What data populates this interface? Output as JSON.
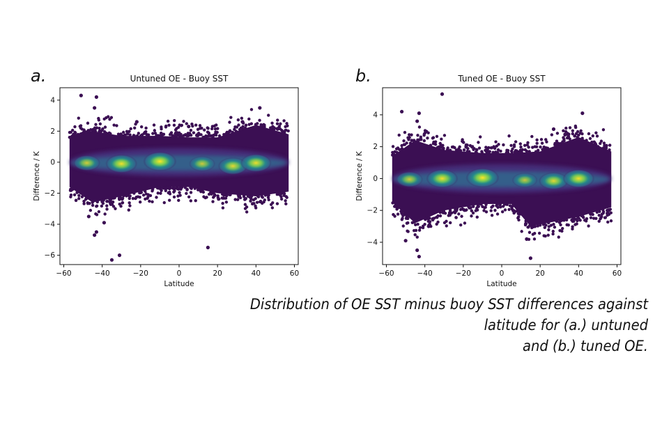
{
  "panels": [
    {
      "letter": "a."
    },
    {
      "letter": "b."
    }
  ],
  "caption": {
    "line1": "Distribution of OE SST minus buoy SST differences against latitude for (a.) untuned",
    "line2": "and (b.) tuned OE."
  },
  "colors": {
    "density_low": "#3b0f53",
    "density_mid": "#21918c",
    "density_high": "#fde725"
  },
  "chart_data": [
    {
      "type": "scatter",
      "title": "Untuned OE - Buoy SST",
      "xlabel": "Latitude",
      "ylabel": "Difference / K",
      "xlim": [
        -62,
        62
      ],
      "ylim": [
        -6.6,
        4.8
      ],
      "xticks": [
        -60,
        -40,
        -20,
        0,
        20,
        40,
        60
      ],
      "yticks": [
        -6,
        -4,
        -2,
        0,
        2,
        4
      ],
      "density_centers": [
        {
          "x": -48,
          "y": -0.05,
          "value": 0.55
        },
        {
          "x": -30,
          "y": -0.1,
          "value": 0.9
        },
        {
          "x": -10,
          "y": 0.05,
          "value": 1.0
        },
        {
          "x": 12,
          "y": -0.1,
          "value": 0.5
        },
        {
          "x": 28,
          "y": -0.25,
          "value": 0.75
        },
        {
          "x": 40,
          "y": -0.05,
          "value": 0.85
        }
      ],
      "envelope": [
        [
          -57,
          1.6
        ],
        [
          -45,
          2.0
        ],
        [
          -30,
          1.7
        ],
        [
          -10,
          1.7
        ],
        [
          5,
          1.6
        ],
        [
          20,
          1.6
        ],
        [
          40,
          2.4
        ],
        [
          57,
          1.8
        ]
      ],
      "envelope_low": [
        [
          -57,
          -1.6
        ],
        [
          -45,
          -2.6
        ],
        [
          -30,
          -2.2
        ],
        [
          -10,
          -1.6
        ],
        [
          5,
          -1.6
        ],
        [
          20,
          -2.0
        ],
        [
          40,
          -2.2
        ],
        [
          57,
          -1.9
        ]
      ],
      "outliers": [
        [
          -51,
          4.3
        ],
        [
          -43,
          4.2
        ],
        [
          -44,
          3.5
        ],
        [
          -43,
          -4.5
        ],
        [
          -44,
          -4.7
        ],
        [
          -35,
          -6.3
        ],
        [
          -31,
          -6.0
        ],
        [
          15,
          -5.5
        ],
        [
          42,
          3.5
        ],
        [
          -39,
          -3.9
        ],
        [
          -47,
          -3.5
        ],
        [
          5,
          2.3
        ],
        [
          -22,
          2.6
        ],
        [
          33,
          2.6
        ]
      ]
    },
    {
      "type": "scatter",
      "title": "Tuned OE - Buoy SST",
      "xlabel": "Latitude",
      "ylabel": "Difference / K",
      "xlim": [
        -62,
        62
      ],
      "ylim": [
        -5.4,
        5.7
      ],
      "xticks": [
        -60,
        -40,
        -20,
        0,
        20,
        40,
        60
      ],
      "yticks": [
        -4,
        -2,
        0,
        2,
        4
      ],
      "density_centers": [
        {
          "x": -48,
          "y": -0.05,
          "value": 0.55
        },
        {
          "x": -31,
          "y": 0.0,
          "value": 0.9
        },
        {
          "x": -10,
          "y": 0.05,
          "value": 1.0
        },
        {
          "x": 12,
          "y": -0.1,
          "value": 0.45
        },
        {
          "x": 27,
          "y": -0.15,
          "value": 0.75
        },
        {
          "x": 40,
          "y": 0.0,
          "value": 0.9
        }
      ],
      "envelope": [
        [
          -57,
          1.4
        ],
        [
          -45,
          2.4
        ],
        [
          -30,
          1.8
        ],
        [
          -10,
          1.6
        ],
        [
          5,
          1.6
        ],
        [
          20,
          1.7
        ],
        [
          40,
          2.6
        ],
        [
          57,
          1.7
        ]
      ],
      "envelope_low": [
        [
          -57,
          -1.5
        ],
        [
          -45,
          -2.8
        ],
        [
          -30,
          -2.0
        ],
        [
          -10,
          -1.6
        ],
        [
          5,
          -1.6
        ],
        [
          15,
          -3.0
        ],
        [
          40,
          -2.4
        ],
        [
          57,
          -1.8
        ]
      ],
      "outliers": [
        [
          -31,
          5.3
        ],
        [
          -52,
          4.2
        ],
        [
          -43,
          4.1
        ],
        [
          -44,
          3.6
        ],
        [
          -43,
          -4.9
        ],
        [
          -44,
          -4.5
        ],
        [
          -50,
          -3.9
        ],
        [
          15,
          -5.0
        ],
        [
          13,
          -3.8
        ],
        [
          42,
          4.1
        ],
        [
          -38,
          -3.0
        ],
        [
          27,
          3.1
        ],
        [
          50,
          2.0
        ]
      ]
    }
  ]
}
